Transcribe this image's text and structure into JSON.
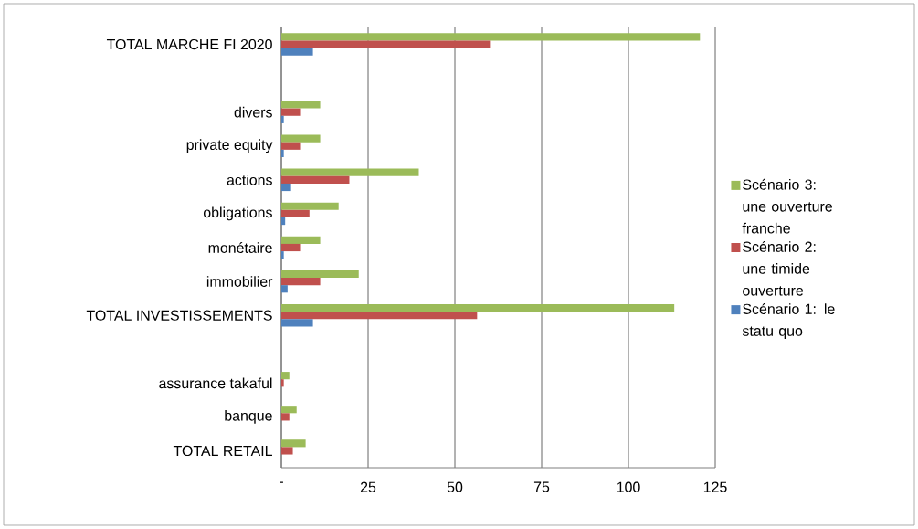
{
  "chart_data": {
    "type": "bar",
    "orientation": "horizontal",
    "categories": [
      "TOTAL MARCHE FI 2020",
      null,
      "divers",
      "private equity",
      "actions",
      "obligations",
      "monétaire",
      "immobilier",
      "TOTAL INVESTISSEMENTS",
      null,
      "assurance takaful",
      "banque",
      "TOTAL RETAIL"
    ],
    "series": [
      {
        "name": "Scénario 3: une ouverture franche",
        "color": "#9bbb59",
        "values": [
          120.6,
          null,
          11.2,
          11.2,
          39.6,
          16.5,
          11.2,
          22.3,
          113.2,
          null,
          2.3,
          4.4,
          7.0
        ]
      },
      {
        "name": "Scénario 2: une timide ouverture",
        "color": "#c0504d",
        "values": [
          60.1,
          null,
          5.4,
          5.4,
          19.6,
          8.1,
          5.4,
          11.2,
          56.4,
          null,
          0.7,
          2.3,
          3.3
        ]
      },
      {
        "name": "Scénario 1: le statu quo",
        "color": "#4f81bd",
        "values": [
          9.1,
          null,
          0.7,
          0.7,
          2.8,
          1.1,
          0.7,
          1.8,
          9.1,
          null,
          0,
          0,
          0
        ]
      }
    ],
    "xlim": [
      0,
      125
    ],
    "xticks": [
      {
        "value": 0,
        "label": "-"
      },
      25,
      50,
      75,
      100,
      125
    ],
    "grid": "x",
    "legend": "right"
  }
}
